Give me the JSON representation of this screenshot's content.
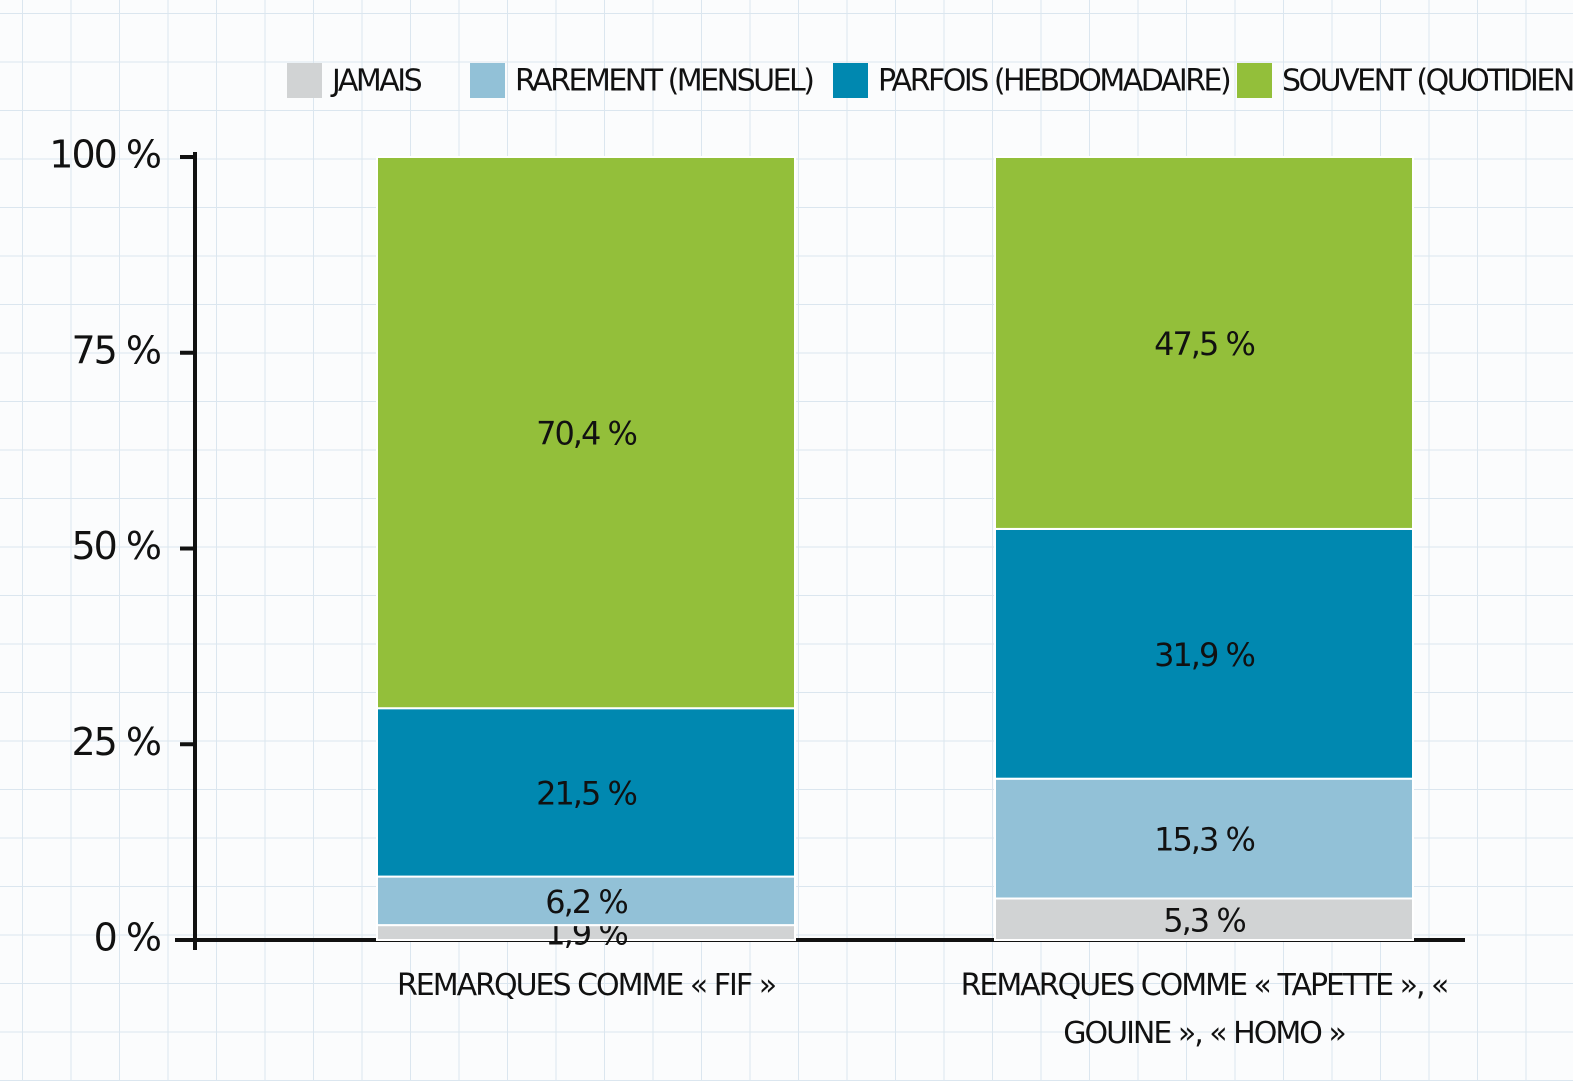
{
  "chart_data": {
    "type": "stacked_bar",
    "categories": [
      "REMARQUES COMME « FIF »",
      "REMARQUES COMME « TAPETTE », « GOUINE », « HOMO »"
    ],
    "series": [
      {
        "name": "JAMAIS",
        "color": "#d1d3d4",
        "values": [
          1.9,
          5.3
        ],
        "value_labels": [
          "1,9 %",
          "5,3 %"
        ]
      },
      {
        "name": "RAREMENT (MENSUEL)",
        "color": "#92c1d7",
        "values": [
          6.2,
          15.3
        ],
        "value_labels": [
          "6,2 %",
          "15,3 %"
        ]
      },
      {
        "name": "PARFOIS (HEBDOMADAIRE)",
        "color": "#0088b0",
        "values": [
          21.5,
          31.9
        ],
        "value_labels": [
          "21,5 %",
          "31,9 %"
        ]
      },
      {
        "name": "SOUVENT (QUOTIDIEN)",
        "color": "#93bf3a",
        "values": [
          70.4,
          47.5
        ],
        "value_labels": [
          "70,4 %",
          "47,5 %"
        ]
      }
    ],
    "ylim": [
      0,
      100
    ],
    "yticks": [
      {
        "value": 0,
        "label": "0 %"
      },
      {
        "value": 25,
        "label": "25 %"
      },
      {
        "value": 50,
        "label": "50 %"
      },
      {
        "value": 75,
        "label": "75 %"
      },
      {
        "value": 100,
        "label": "100 %"
      }
    ],
    "legend": "top"
  }
}
